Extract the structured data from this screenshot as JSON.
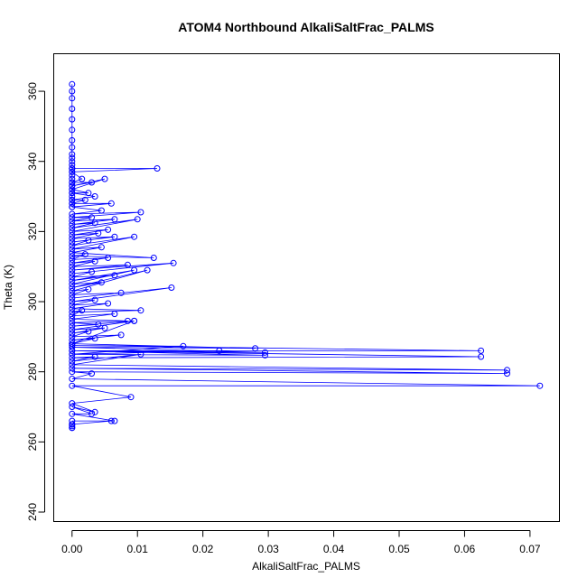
{
  "chart_data": {
    "type": "line",
    "title": "ATOM4 Northbound AlkaliSaltFrac_PALMS",
    "xlabel": "AlkaliSaltFrac_PALMS",
    "ylabel": "Theta (K)",
    "xlim": [
      -0.0028,
      0.0745
    ],
    "ylim": [
      237.3,
      370.7
    ],
    "x_ticks": [
      0.0,
      0.01,
      0.02,
      0.03,
      0.04,
      0.05,
      0.06,
      0.07
    ],
    "x_tick_labels": [
      "0.00",
      "0.01",
      "0.02",
      "0.03",
      "0.04",
      "0.05",
      "0.06",
      "0.07"
    ],
    "y_ticks": [
      240,
      260,
      280,
      300,
      320,
      340,
      360
    ],
    "y_tick_labels": [
      "240",
      "260",
      "280",
      "300",
      "320",
      "340",
      "360"
    ],
    "color": "#0000ff",
    "markers": "open-circle",
    "series": [
      {
        "x": [
          0.0,
          0.0,
          0.0,
          0.0,
          0.0,
          0.0,
          0.0,
          0.0,
          0.0,
          0.0,
          0.0,
          0.0,
          0.0,
          0.0,
          0.0,
          0.0,
          0.0,
          0.0,
          0.0,
          0.0,
          0.0,
          0.0,
          0.0,
          0.0,
          0.0,
          0.0,
          0.013,
          0.0,
          0.0015,
          0.0,
          0.003,
          0.0,
          0.005,
          0.0,
          0.0025,
          0.0,
          0.0035,
          0.0,
          0.002,
          0.0,
          0.006,
          0.0,
          0.0045,
          0.0,
          0.0105,
          0.0,
          0.003,
          0.0,
          0.0065,
          0.0,
          0.0035,
          0.0,
          0.01,
          0.0,
          0.0055,
          0.0,
          0.004,
          0.0,
          0.0065,
          0.0,
          0.0025,
          0.0,
          0.0095,
          0.0,
          0.0045,
          0.0,
          0.0125,
          0.0,
          0.002,
          0.0,
          0.0055,
          0.0,
          0.0035,
          0.0,
          0.0085,
          0.0,
          0.0155,
          0.0,
          0.003,
          0.0,
          0.0065,
          0.0,
          0.0095,
          0.0,
          0.0045,
          0.0,
          0.0115,
          0.0,
          0.0025,
          0.0,
          0.0075,
          0.0,
          0.0152,
          0.0,
          0.0035,
          0.0,
          0.0055,
          0.0,
          0.0105,
          0.0,
          0.0015,
          0.0,
          0.0065,
          0.0,
          0.0085,
          0.0,
          0.004,
          0.0,
          0.0095,
          0.0,
          0.005,
          0.0,
          0.0025,
          0.0,
          0.0075,
          0.0,
          0.0035,
          0.0,
          0.0095,
          0.0,
          0.028,
          0.0,
          0.0295,
          0.0,
          0.0295,
          0.0,
          0.0225,
          0.0,
          0.017,
          0.0,
          0.0625,
          0.0,
          0.0625,
          0.0,
          0.0035,
          0.0,
          0.0105,
          0.0,
          0.0665,
          0.0,
          0.0665,
          0.0,
          0.003,
          0.0,
          0.0715,
          0.0,
          0.009,
          0.0,
          0.0035,
          0.0,
          0.003,
          0.0,
          0.0065,
          0.0,
          0.006,
          0.0,
          0.0,
          0.0,
          0.0,
          0.0
        ],
        "y": [
          362,
          360,
          358,
          355,
          352,
          349,
          346,
          344,
          342,
          341,
          340,
          339,
          338,
          337,
          336,
          335,
          334,
          333,
          332,
          331,
          330,
          329,
          328,
          327,
          338,
          338,
          338,
          337,
          335,
          334,
          334,
          333,
          335,
          332,
          331,
          331,
          330,
          329,
          329,
          328,
          328,
          327,
          326,
          325,
          325.5,
          324,
          324,
          323,
          323.5,
          322,
          322.5,
          321,
          323.5,
          320,
          320.5,
          319,
          319.5,
          318,
          318.5,
          317,
          317.5,
          316,
          318.5,
          315,
          315.5,
          314,
          312.5,
          313,
          313.5,
          312,
          312.5,
          311,
          311.5,
          310,
          310.5,
          309,
          311,
          308,
          308.5,
          307,
          307.5,
          306,
          309,
          305,
          305.5,
          304,
          309,
          303,
          303.5,
          302,
          302.5,
          301,
          304,
          300,
          300.5,
          299,
          299.5,
          298,
          297.5,
          297,
          297.5,
          296,
          296.5,
          295,
          294.5,
          294,
          293.5,
          293,
          294.5,
          292,
          292.5,
          291,
          291.5,
          290,
          290.5,
          289,
          289.5,
          288,
          294.5,
          288,
          286.7,
          287,
          285.5,
          286,
          284.7,
          285,
          286,
          285,
          287.3,
          287.5,
          286,
          286,
          284.3,
          284,
          284.3,
          283,
          285,
          282,
          280.5,
          281,
          279.5,
          280,
          279.5,
          278,
          276,
          276,
          272.8,
          271,
          268.5,
          270,
          268,
          268,
          266,
          266,
          266,
          265,
          264.5,
          264,
          264,
          265
        ]
      }
    ]
  }
}
